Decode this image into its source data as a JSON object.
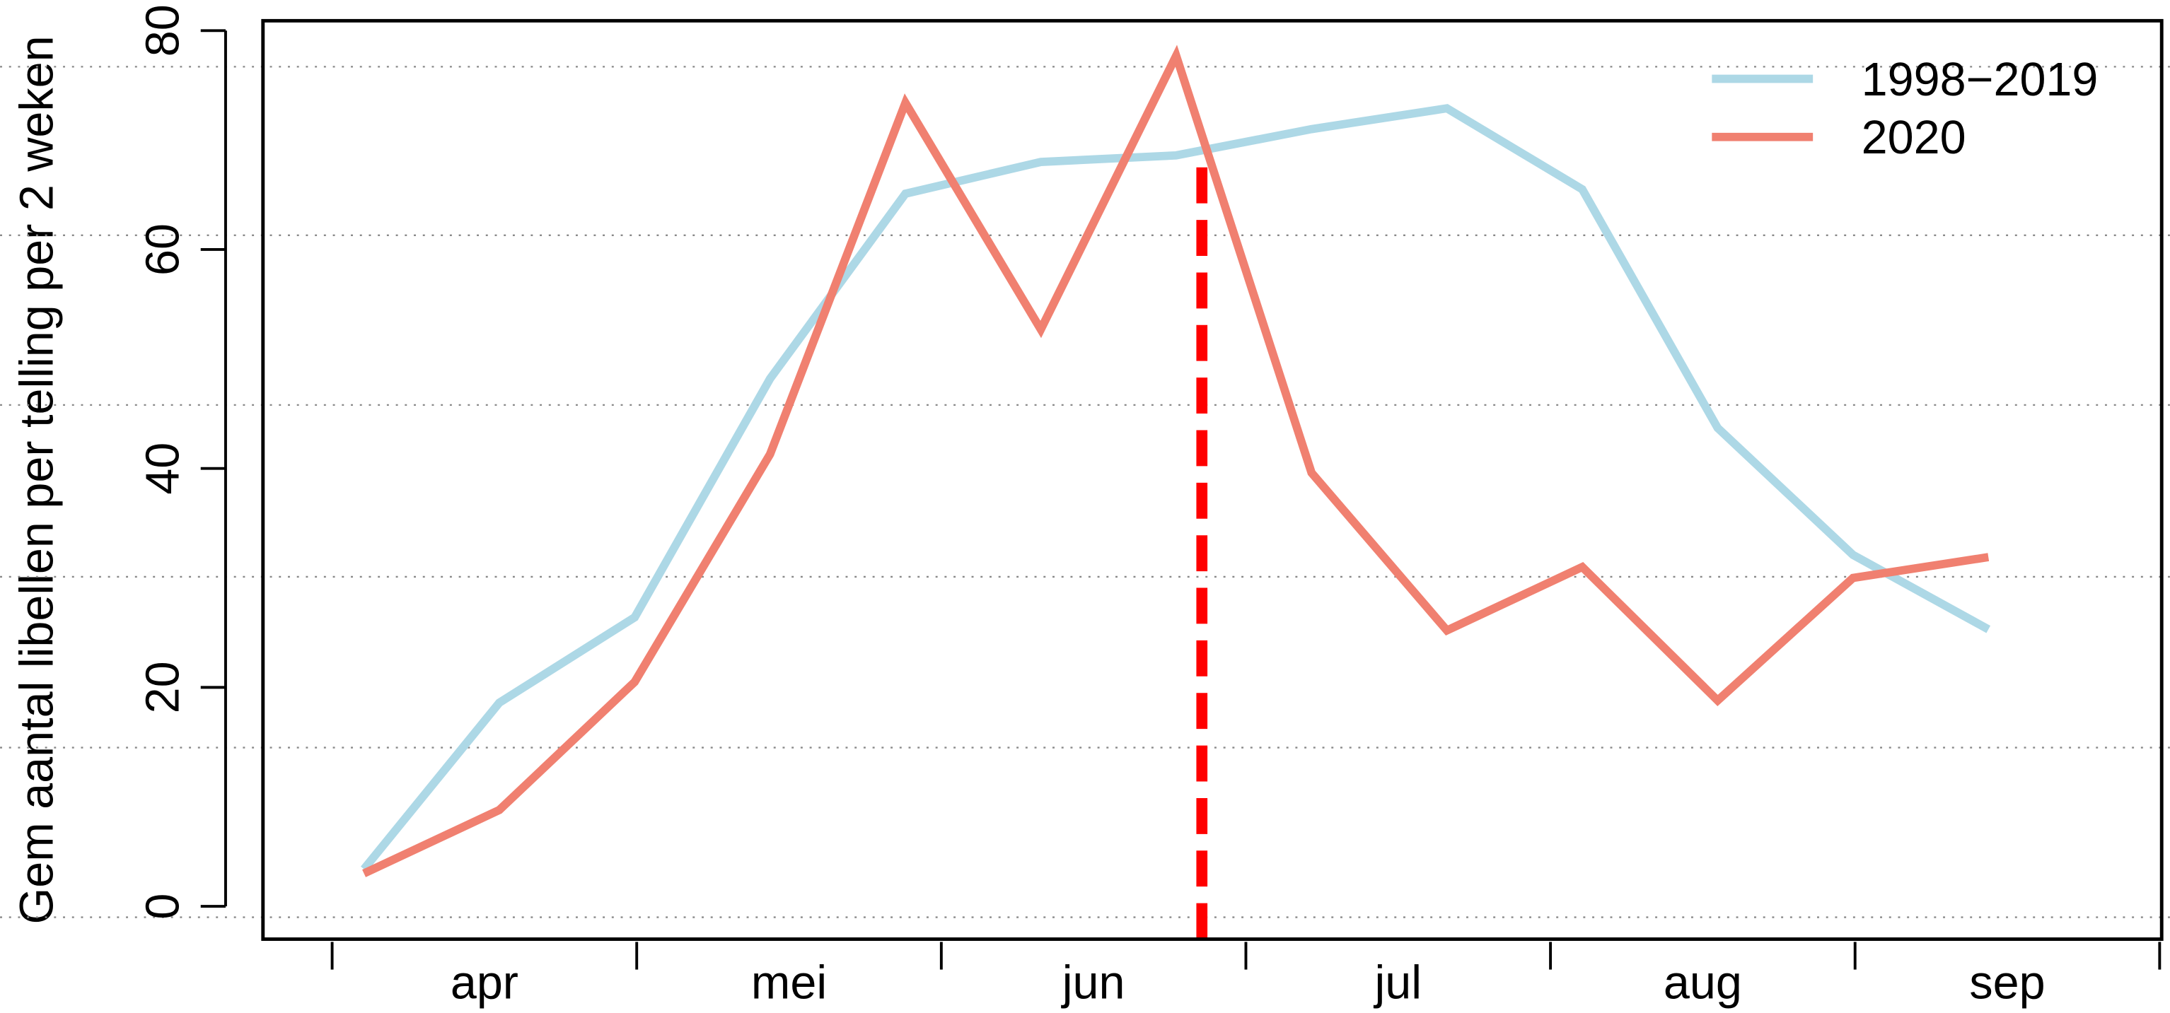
{
  "chart_data": {
    "type": "line",
    "ylabel": "Gem aantal libellen per telling per 2 weken",
    "x": [
      0,
      1,
      2,
      3,
      4,
      5,
      6,
      7,
      8,
      9,
      10,
      11,
      12
    ],
    "xlim": [
      -0.746,
      13.28
    ],
    "xticks": [
      {
        "value": 0.89,
        "label": "apr"
      },
      {
        "value": 3.14,
        "label": "mei"
      },
      {
        "value": 5.39,
        "label": "jun"
      },
      {
        "value": 7.64,
        "label": "jul"
      },
      {
        "value": 9.89,
        "label": "aug"
      },
      {
        "value": 12.14,
        "label": "sep"
      }
    ],
    "month_boundaries": [
      -0.235,
      2.015,
      4.265,
      6.515,
      8.765,
      11.015,
      13.265
    ],
    "ylim": [
      -3.0,
      80.9
    ],
    "yticks": [
      0,
      20,
      40,
      60,
      80
    ],
    "ygrid": [
      76.7,
      61.3,
      45.8,
      30.1,
      14.5,
      -1.0
    ],
    "legend": "top-right",
    "series": [
      {
        "name": "1998−2019",
        "color": "#add8e6",
        "values": [
          3.4,
          18.6,
          26.4,
          48.2,
          65.1,
          68.0,
          68.6,
          71.0,
          72.9,
          65.5,
          43.7,
          32.1,
          25.3
        ]
      },
      {
        "name": "2020",
        "color": "#f08070",
        "values": [
          3.0,
          8.8,
          20.5,
          41.3,
          73.4,
          52.7,
          77.7,
          39.6,
          25.2,
          31.0,
          18.8,
          30.0,
          31.9
        ]
      }
    ],
    "vline": {
      "x": 6.19,
      "ymax": 69,
      "color": "#ff0000"
    }
  }
}
